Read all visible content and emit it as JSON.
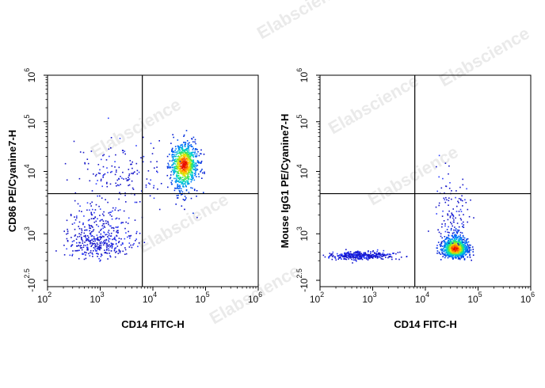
{
  "watermark": "Elabscience",
  "chart_data": [
    {
      "type": "scatter",
      "plot": "dot-plot",
      "xlabel": "CD14 FITC-H",
      "ylabel": "CD86 PE/Cyanine7-H",
      "x_scale": "log",
      "y_scale": "logicle",
      "xlim": [
        100,
        1000000
      ],
      "ylim": [
        -316,
        1000000
      ],
      "x_ticks": [
        {
          "base": "10",
          "exp": "2",
          "value": 100
        },
        {
          "base": "10",
          "exp": "3",
          "value": 1000
        },
        {
          "base": "10",
          "exp": "4",
          "value": 10000
        },
        {
          "base": "10",
          "exp": "5",
          "value": 100000
        },
        {
          "base": "10",
          "exp": "6",
          "value": 1000000
        }
      ],
      "y_ticks": [
        {
          "base": "-10",
          "exp": "2.5",
          "value": -316
        },
        {
          "base": "10",
          "exp": "3",
          "value": 1000
        },
        {
          "base": "10",
          "exp": "4",
          "value": 10000
        },
        {
          "base": "10",
          "exp": "5",
          "value": 100000
        },
        {
          "base": "10",
          "exp": "6",
          "value": 1000000
        }
      ],
      "gate": {
        "x": 6300,
        "y": 4400
      },
      "populations": [
        {
          "center": [
            38000,
            14000
          ],
          "spread_log": [
            0.13,
            0.22
          ],
          "n": 900,
          "density": "high"
        },
        {
          "center": [
            900,
            750
          ],
          "spread_log": [
            0.3,
            0.28
          ],
          "n": 420,
          "density": "low"
        },
        {
          "center": [
            2500,
            9000
          ],
          "spread_log": [
            0.45,
            0.3
          ],
          "n": 160,
          "density": "low"
        }
      ],
      "grid": false,
      "legend": "none"
    },
    {
      "type": "scatter",
      "plot": "dot-plot",
      "xlabel": "CD14 FITC-H",
      "ylabel": "Mouse IgG1 PE/Cyanine7-H",
      "x_scale": "log",
      "y_scale": "logicle",
      "xlim": [
        100,
        1000000
      ],
      "ylim": [
        -316,
        1000000
      ],
      "x_ticks": [
        {
          "base": "10",
          "exp": "2",
          "value": 100
        },
        {
          "base": "10",
          "exp": "3",
          "value": 1000
        },
        {
          "base": "10",
          "exp": "4",
          "value": 10000
        },
        {
          "base": "10",
          "exp": "5",
          "value": 100000
        },
        {
          "base": "10",
          "exp": "6",
          "value": 1000000
        }
      ],
      "y_ticks": [
        {
          "base": "-10",
          "exp": "2.5",
          "value": -316
        },
        {
          "base": "10",
          "exp": "3",
          "value": 1000
        },
        {
          "base": "10",
          "exp": "4",
          "value": 10000
        },
        {
          "base": "10",
          "exp": "5",
          "value": 100000
        },
        {
          "base": "10",
          "exp": "6",
          "value": 1000000
        }
      ],
      "gate": {
        "x": 6300,
        "y": 4400
      },
      "populations": [
        {
          "center": [
            36000,
            420
          ],
          "spread_log": [
            0.12,
            0.18
          ],
          "n": 950,
          "density": "high"
        },
        {
          "center": [
            600,
            220
          ],
          "spread_log": [
            0.3,
            0.1
          ],
          "n": 380,
          "density": "low"
        },
        {
          "center": [
            30000,
            2200
          ],
          "spread_log": [
            0.2,
            0.35
          ],
          "n": 120,
          "density": "low"
        }
      ],
      "grid": false,
      "legend": "none"
    }
  ]
}
